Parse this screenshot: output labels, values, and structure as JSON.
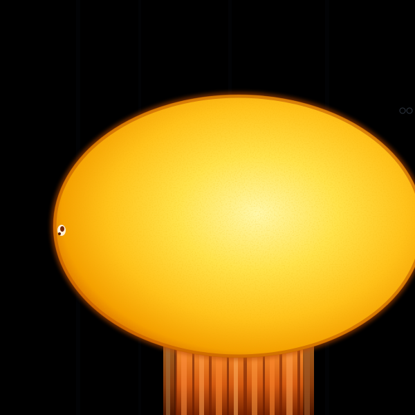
{
  "image": {
    "subject": "solar disc",
    "colors": {
      "background": "#000000",
      "core": "#fff7a8",
      "mid": "#ffd21a",
      "outer": "#f5a000",
      "limb": "#d46400",
      "edge": "#8a3000",
      "streak_light": "#ff8a2a",
      "streak_dark": "#6a1a00"
    }
  }
}
